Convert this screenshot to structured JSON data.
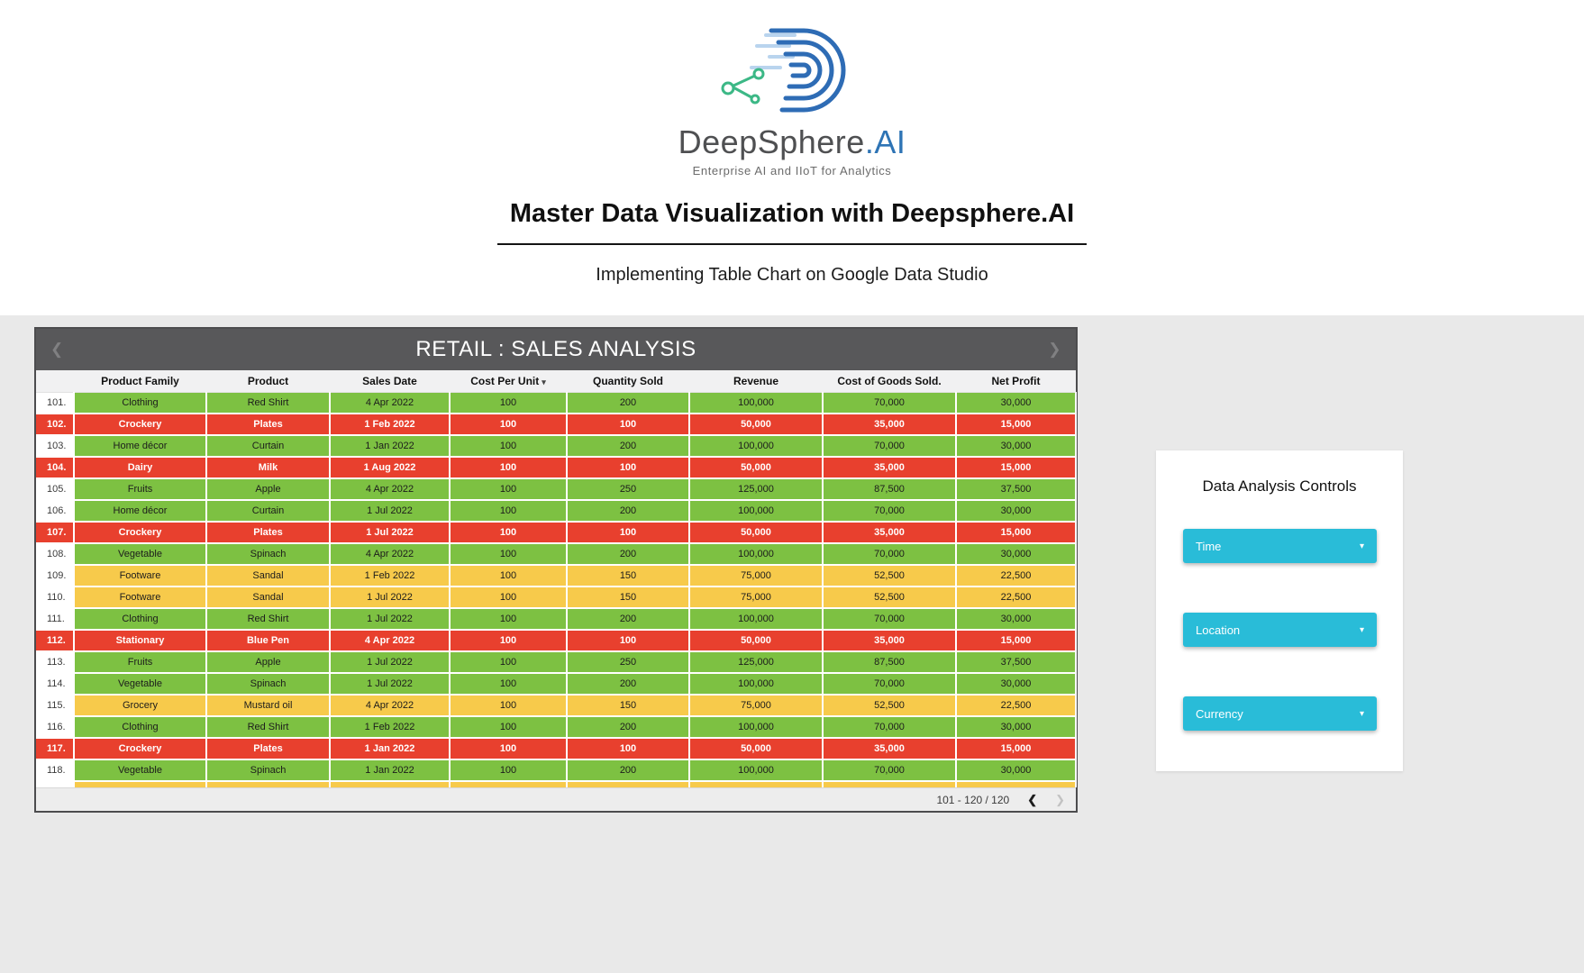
{
  "branding": {
    "logo_text": "DeepSphere",
    "logo_suffix": ".AI",
    "tagline": "Enterprise AI and IIoT for Analytics",
    "title": "Master Data Visualization with Deepsphere.AI",
    "subtitle": "Implementing Table Chart on Google Data Studio"
  },
  "report": {
    "title": "RETAIL : SALES ANALYSIS",
    "nav": {
      "left_icon": "❮",
      "right_icon": "❯"
    },
    "columns": [
      "",
      "Product Family",
      "Product",
      "Sales Date",
      "Cost Per Unit",
      "Quantity Sold",
      "Revenue",
      "Cost of Goods Sold.",
      "Net Profit"
    ],
    "sort_column": "Cost Per Unit",
    "sort_icon": "▾",
    "rows": [
      {
        "num": "101.",
        "family": "Clothing",
        "product": "Red Shirt",
        "date": "4 Apr 2022",
        "cost": "100",
        "qty": "200",
        "revenue": "100,000",
        "cogs": "70,000",
        "profit": "30,000",
        "state": "green"
      },
      {
        "num": "102.",
        "family": "Crockery",
        "product": "Plates",
        "date": "1 Feb 2022",
        "cost": "100",
        "qty": "100",
        "revenue": "50,000",
        "cogs": "35,000",
        "profit": "15,000",
        "state": "red"
      },
      {
        "num": "103.",
        "family": "Home décor",
        "product": "Curtain",
        "date": "1 Jan 2022",
        "cost": "100",
        "qty": "200",
        "revenue": "100,000",
        "cogs": "70,000",
        "profit": "30,000",
        "state": "green"
      },
      {
        "num": "104.",
        "family": "Dairy",
        "product": "Milk",
        "date": "1 Aug 2022",
        "cost": "100",
        "qty": "100",
        "revenue": "50,000",
        "cogs": "35,000",
        "profit": "15,000",
        "state": "red"
      },
      {
        "num": "105.",
        "family": "Fruits",
        "product": "Apple",
        "date": "4 Apr 2022",
        "cost": "100",
        "qty": "250",
        "revenue": "125,000",
        "cogs": "87,500",
        "profit": "37,500",
        "state": "green"
      },
      {
        "num": "106.",
        "family": "Home décor",
        "product": "Curtain",
        "date": "1 Jul 2022",
        "cost": "100",
        "qty": "200",
        "revenue": "100,000",
        "cogs": "70,000",
        "profit": "30,000",
        "state": "green"
      },
      {
        "num": "107.",
        "family": "Crockery",
        "product": "Plates",
        "date": "1 Jul 2022",
        "cost": "100",
        "qty": "100",
        "revenue": "50,000",
        "cogs": "35,000",
        "profit": "15,000",
        "state": "red"
      },
      {
        "num": "108.",
        "family": "Vegetable",
        "product": "Spinach",
        "date": "4 Apr 2022",
        "cost": "100",
        "qty": "200",
        "revenue": "100,000",
        "cogs": "70,000",
        "profit": "30,000",
        "state": "green"
      },
      {
        "num": "109.",
        "family": "Footware",
        "product": "Sandal",
        "date": "1 Feb 2022",
        "cost": "100",
        "qty": "150",
        "revenue": "75,000",
        "cogs": "52,500",
        "profit": "22,500",
        "state": "yellow"
      },
      {
        "num": "110.",
        "family": "Footware",
        "product": "Sandal",
        "date": "1 Jul 2022",
        "cost": "100",
        "qty": "150",
        "revenue": "75,000",
        "cogs": "52,500",
        "profit": "22,500",
        "state": "yellow"
      },
      {
        "num": "111.",
        "family": "Clothing",
        "product": "Red Shirt",
        "date": "1 Jul 2022",
        "cost": "100",
        "qty": "200",
        "revenue": "100,000",
        "cogs": "70,000",
        "profit": "30,000",
        "state": "green"
      },
      {
        "num": "112.",
        "family": "Stationary",
        "product": "Blue Pen",
        "date": "4 Apr 2022",
        "cost": "100",
        "qty": "100",
        "revenue": "50,000",
        "cogs": "35,000",
        "profit": "15,000",
        "state": "red"
      },
      {
        "num": "113.",
        "family": "Fruits",
        "product": "Apple",
        "date": "1 Jul 2022",
        "cost": "100",
        "qty": "250",
        "revenue": "125,000",
        "cogs": "87,500",
        "profit": "37,500",
        "state": "green"
      },
      {
        "num": "114.",
        "family": "Vegetable",
        "product": "Spinach",
        "date": "1 Jul 2022",
        "cost": "100",
        "qty": "200",
        "revenue": "100,000",
        "cogs": "70,000",
        "profit": "30,000",
        "state": "green"
      },
      {
        "num": "115.",
        "family": "Grocery",
        "product": "Mustard oil",
        "date": "4 Apr 2022",
        "cost": "100",
        "qty": "150",
        "revenue": "75,000",
        "cogs": "52,500",
        "profit": "22,500",
        "state": "yellow"
      },
      {
        "num": "116.",
        "family": "Clothing",
        "product": "Red Shirt",
        "date": "1 Feb 2022",
        "cost": "100",
        "qty": "200",
        "revenue": "100,000",
        "cogs": "70,000",
        "profit": "30,000",
        "state": "green"
      },
      {
        "num": "117.",
        "family": "Crockery",
        "product": "Plates",
        "date": "1 Jan 2022",
        "cost": "100",
        "qty": "100",
        "revenue": "50,000",
        "cogs": "35,000",
        "profit": "15,000",
        "state": "red"
      },
      {
        "num": "118.",
        "family": "Vegetable",
        "product": "Spinach",
        "date": "1 Jan 2022",
        "cost": "100",
        "qty": "200",
        "revenue": "100,000",
        "cogs": "70,000",
        "profit": "30,000",
        "state": "green"
      }
    ],
    "partial_row": {
      "state": "yellow"
    },
    "pagination": {
      "label": "101 - 120 / 120",
      "prev_icon": "❮",
      "next_icon": "❯"
    }
  },
  "controls": {
    "title": "Data Analysis Controls",
    "caret_icon": "▾",
    "buttons": [
      {
        "label": "Time"
      },
      {
        "label": "Location"
      },
      {
        "label": "Currency"
      }
    ]
  },
  "colors": {
    "row_green": "#7dc142",
    "row_red": "#e8402e",
    "row_yellow": "#f7ca4b",
    "table_header_bar": "#58585a",
    "accent_cyan": "#29bcd8",
    "logo_blue": "#2e6cb5",
    "logo_green": "#3cb886"
  }
}
